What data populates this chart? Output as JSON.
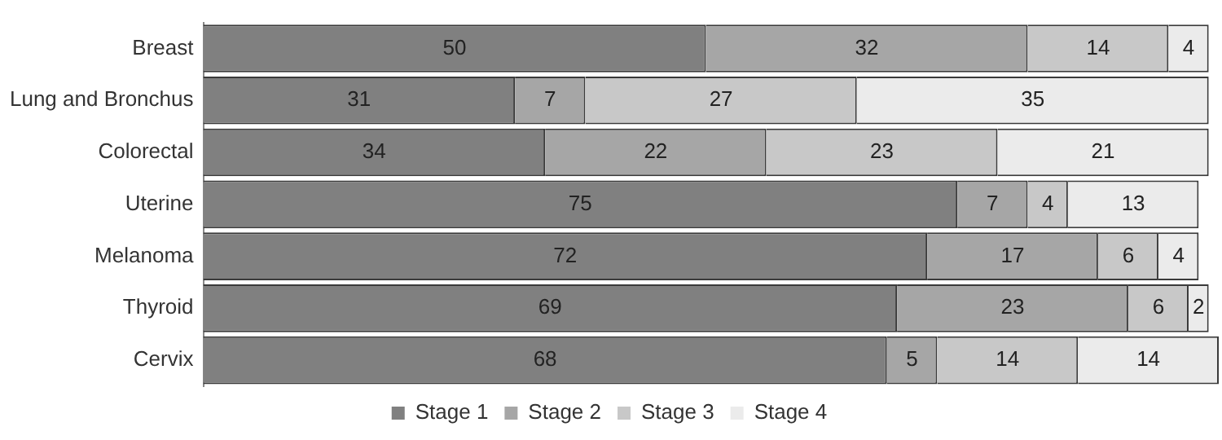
{
  "chart_data": {
    "type": "bar",
    "orientation": "horizontal",
    "stacked": true,
    "data_labels": true,
    "legend": "bottom",
    "tick_labels": "y",
    "categories": [
      "Breast",
      "Lung and Bronchus",
      "Colorectal",
      "Uterine",
      "Melanoma",
      "Thyroid",
      "Cervix"
    ],
    "series": [
      {
        "name": "Stage 1",
        "color": "#808080",
        "values": [
          50,
          31,
          34,
          75,
          72,
          69,
          68
        ]
      },
      {
        "name": "Stage 2",
        "color": "#a6a6a6",
        "values": [
          32,
          7,
          22,
          7,
          17,
          23,
          5
        ]
      },
      {
        "name": "Stage 3",
        "color": "#c8c8c8",
        "values": [
          14,
          27,
          23,
          4,
          6,
          6,
          14
        ]
      },
      {
        "name": "Stage 4",
        "color": "#ebebeb",
        "values": [
          4,
          35,
          21,
          13,
          4,
          2,
          14
        ]
      }
    ]
  }
}
